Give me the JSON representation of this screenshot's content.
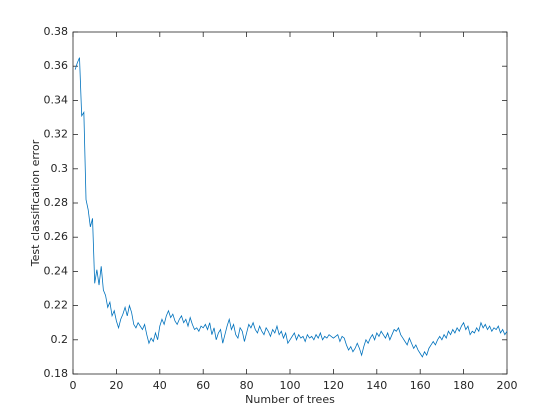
{
  "chart_data": {
    "type": "line",
    "x_label": "Number of trees",
    "y_label": "Test classification error",
    "color": "#0072bd",
    "xlim": [
      0,
      200
    ],
    "xticks": [
      0,
      20,
      40,
      60,
      80,
      100,
      120,
      140,
      160,
      180,
      200
    ],
    "ylim": [
      0.18,
      0.38
    ],
    "yticks": [
      0.18,
      0.2,
      0.22,
      0.24,
      0.26,
      0.28,
      0.3,
      0.32,
      0.34,
      0.36,
      0.38
    ],
    "x": [
      1,
      2,
      3,
      4,
      5,
      6,
      7,
      8,
      9,
      10,
      11,
      12,
      13,
      14,
      15,
      16,
      17,
      18,
      19,
      20,
      21,
      22,
      23,
      24,
      25,
      26,
      27,
      28,
      29,
      30,
      31,
      32,
      33,
      34,
      35,
      36,
      37,
      38,
      39,
      40,
      41,
      42,
      43,
      44,
      45,
      46,
      47,
      48,
      49,
      50,
      51,
      52,
      53,
      54,
      55,
      56,
      57,
      58,
      59,
      60,
      61,
      62,
      63,
      64,
      65,
      66,
      67,
      68,
      69,
      70,
      71,
      72,
      73,
      74,
      75,
      76,
      77,
      78,
      79,
      80,
      81,
      82,
      83,
      84,
      85,
      86,
      87,
      88,
      89,
      90,
      91,
      92,
      93,
      94,
      95,
      96,
      97,
      98,
      99,
      100,
      101,
      102,
      103,
      104,
      105,
      106,
      107,
      108,
      109,
      110,
      111,
      112,
      113,
      114,
      115,
      116,
      117,
      118,
      119,
      120,
      121,
      122,
      123,
      124,
      125,
      126,
      127,
      128,
      129,
      130,
      131,
      132,
      133,
      134,
      135,
      136,
      137,
      138,
      139,
      140,
      141,
      142,
      143,
      144,
      145,
      146,
      147,
      148,
      149,
      150,
      151,
      152,
      153,
      154,
      155,
      156,
      157,
      158,
      159,
      160,
      161,
      162,
      163,
      164,
      165,
      166,
      167,
      168,
      169,
      170,
      171,
      172,
      173,
      174,
      175,
      176,
      177,
      178,
      179,
      180,
      181,
      182,
      183,
      184,
      185,
      186,
      187,
      188,
      189,
      190,
      191,
      192,
      193,
      194,
      195,
      196,
      197,
      198,
      199,
      200
    ],
    "values": [
      0.358,
      0.362,
      0.365,
      0.331,
      0.333,
      0.282,
      0.276,
      0.266,
      0.271,
      0.233,
      0.241,
      0.232,
      0.243,
      0.229,
      0.226,
      0.219,
      0.222,
      0.214,
      0.217,
      0.211,
      0.207,
      0.212,
      0.215,
      0.219,
      0.214,
      0.22,
      0.216,
      0.209,
      0.207,
      0.21,
      0.208,
      0.206,
      0.209,
      0.203,
      0.198,
      0.201,
      0.199,
      0.204,
      0.2,
      0.208,
      0.212,
      0.209,
      0.214,
      0.217,
      0.213,
      0.215,
      0.211,
      0.209,
      0.212,
      0.214,
      0.21,
      0.212,
      0.208,
      0.213,
      0.209,
      0.206,
      0.207,
      0.205,
      0.208,
      0.207,
      0.209,
      0.206,
      0.21,
      0.203,
      0.207,
      0.2,
      0.204,
      0.206,
      0.198,
      0.203,
      0.208,
      0.212,
      0.206,
      0.209,
      0.203,
      0.201,
      0.207,
      0.205,
      0.199,
      0.204,
      0.209,
      0.207,
      0.21,
      0.206,
      0.204,
      0.208,
      0.205,
      0.203,
      0.207,
      0.205,
      0.202,
      0.206,
      0.204,
      0.208,
      0.203,
      0.205,
      0.201,
      0.204,
      0.198,
      0.2,
      0.202,
      0.204,
      0.2,
      0.203,
      0.201,
      0.202,
      0.199,
      0.203,
      0.201,
      0.202,
      0.2,
      0.203,
      0.201,
      0.204,
      0.2,
      0.202,
      0.201,
      0.203,
      0.202,
      0.201,
      0.202,
      0.203,
      0.199,
      0.202,
      0.201,
      0.197,
      0.194,
      0.196,
      0.193,
      0.195,
      0.198,
      0.195,
      0.191,
      0.196,
      0.2,
      0.198,
      0.201,
      0.203,
      0.2,
      0.204,
      0.202,
      0.205,
      0.203,
      0.201,
      0.204,
      0.2,
      0.203,
      0.206,
      0.205,
      0.207,
      0.203,
      0.201,
      0.199,
      0.197,
      0.201,
      0.198,
      0.195,
      0.197,
      0.194,
      0.192,
      0.19,
      0.193,
      0.191,
      0.195,
      0.197,
      0.199,
      0.197,
      0.2,
      0.202,
      0.2,
      0.203,
      0.201,
      0.205,
      0.203,
      0.206,
      0.204,
      0.207,
      0.205,
      0.208,
      0.21,
      0.206,
      0.208,
      0.203,
      0.205,
      0.204,
      0.207,
      0.205,
      0.21,
      0.207,
      0.209,
      0.206,
      0.208,
      0.205,
      0.207,
      0.206,
      0.208,
      0.204,
      0.206,
      0.203,
      0.205
    ]
  }
}
